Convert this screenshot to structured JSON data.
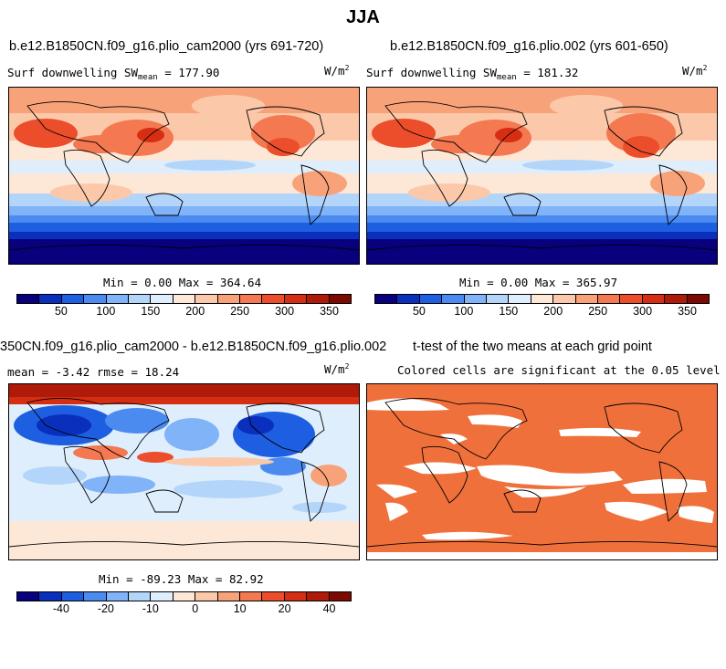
{
  "figure_title": "JJA",
  "panel1": {
    "title": "b.e12.B1850CN.f09_g16.plio_cam2000 (yrs 691-720)",
    "variable": "Surf downwelling SW",
    "mean_label": "mean",
    "mean_value": "= 177.90",
    "units_base": "W/m",
    "units_exp": "2",
    "minmax": "Min =   0.00 Max = 364.64"
  },
  "panel2": {
    "title": "b.e12.B1850CN.f09_g16.plio.002 (yrs 601-650)",
    "variable": "Surf downwelling SW",
    "mean_label": "mean",
    "mean_value": "= 181.32",
    "units_base": "W/m",
    "units_exp": "2",
    "minmax": "Min =   0.00 Max = 365.97"
  },
  "panel3": {
    "title": "350CN.f09_g16.plio_cam2000 - b.e12.B1850CN.f09_g16.plio.002",
    "stats": "mean =  -3.42    rmse =  18.24",
    "units_base": "W/m",
    "units_exp": "2",
    "minmax": "Min = -89.23 Max =  82.92"
  },
  "panel4": {
    "title": "t-test of the two means at each grid point",
    "subtitle": "Colored cells are significant at the 0.05 level"
  },
  "colorbar_abs": {
    "ticks": [
      "50",
      "100",
      "150",
      "200",
      "250",
      "300",
      "350"
    ],
    "colors": [
      "#08007d",
      "#0a2fbd",
      "#1d5fe0",
      "#4b8bf0",
      "#80b3f7",
      "#b4d5fa",
      "#dfeefd",
      "#fde7d6",
      "#fbc9a9",
      "#f8a27a",
      "#f47850",
      "#ec4d2a",
      "#d62e13",
      "#b01a08",
      "#7d0a02"
    ]
  },
  "colorbar_diff": {
    "ticks": [
      "-40",
      "-20",
      "-10",
      "0",
      "10",
      "20",
      "40"
    ],
    "colors": [
      "#08007d",
      "#0a2fbd",
      "#1d5fe0",
      "#4b8bf0",
      "#80b3f7",
      "#b4d5fa",
      "#dfeefd",
      "#fde7d6",
      "#fbc9a9",
      "#f8a27a",
      "#f47850",
      "#ec4d2a",
      "#d62e13",
      "#b01a08",
      "#7d0a02"
    ]
  },
  "significance_color": "#f0703c"
}
